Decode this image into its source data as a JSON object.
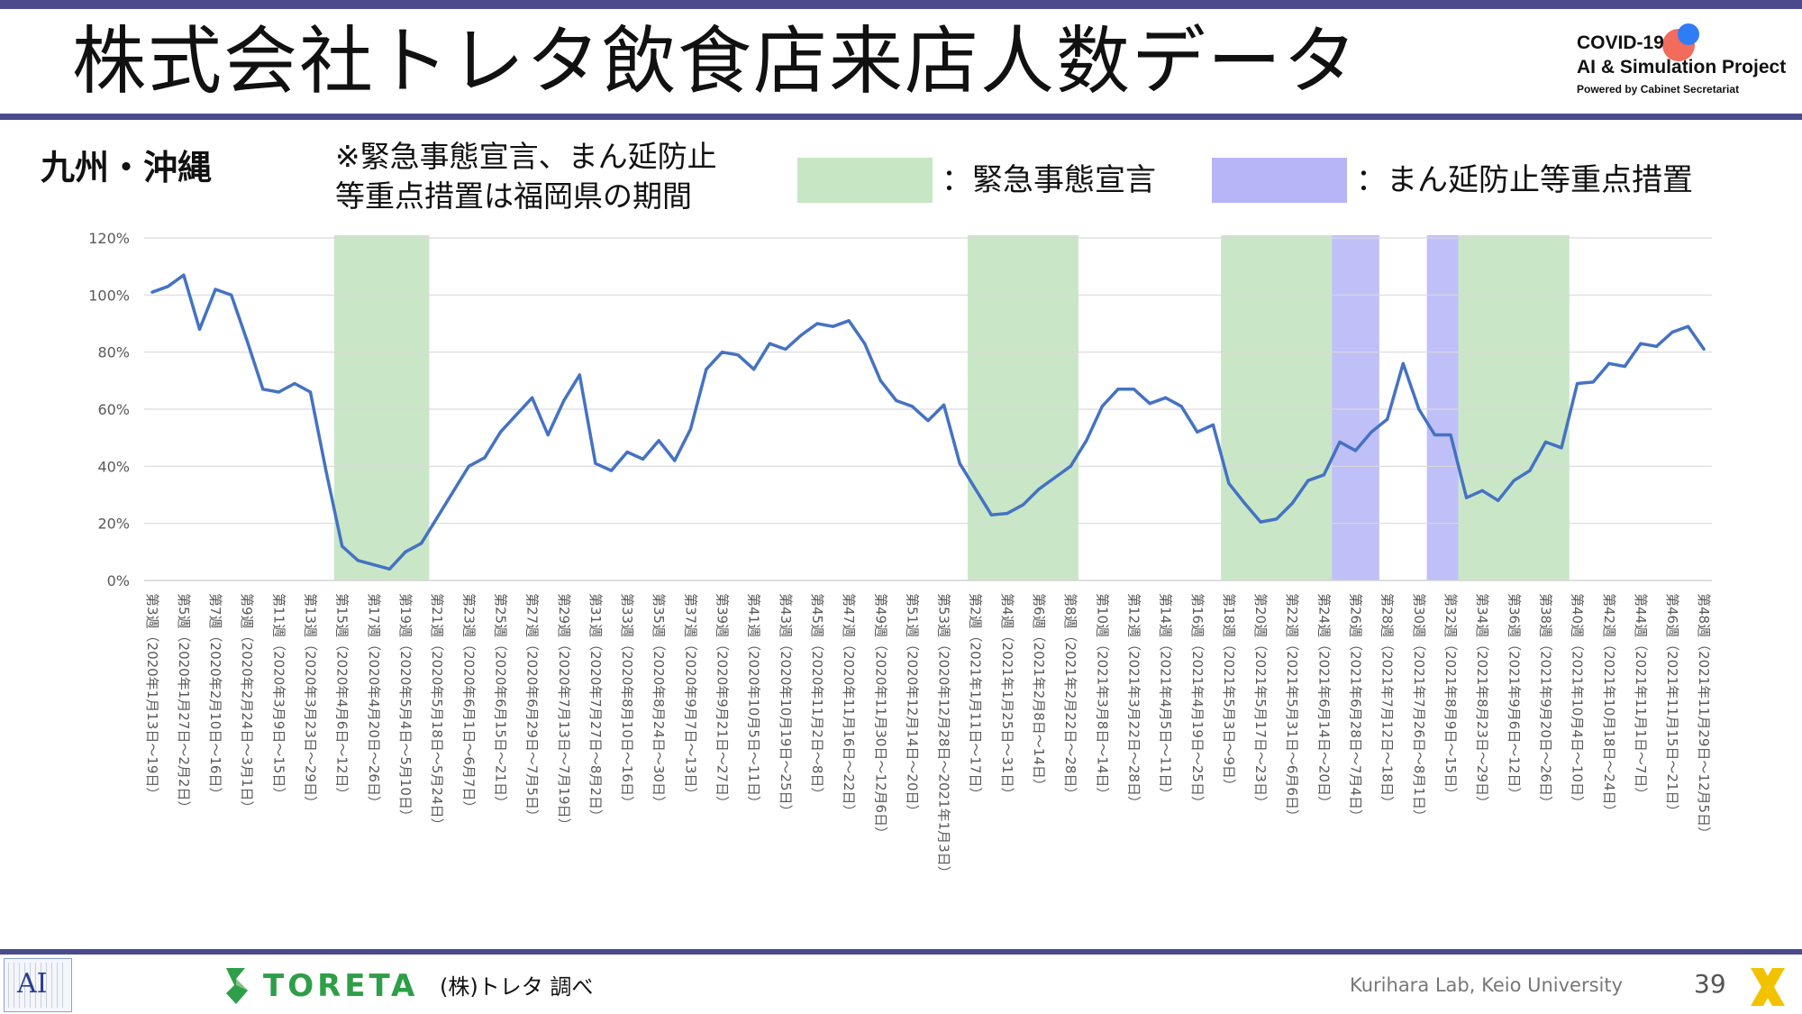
{
  "header": {
    "title": "株式会社トレタ飲食店来店人数データ",
    "logo_line1": "COVID-19",
    "logo_line2": "AI & Simulation Project",
    "logo_line3": "Powered by Cabinet Secretariat"
  },
  "subheader": {
    "region": "九州・沖縄",
    "note_line1": "※緊急事態宣言、まん延防止",
    "note_line2": "等重点措置は福岡県の期間",
    "legend_green": "：緊急事態宣言",
    "legend_blue": "：まん延防止等重点措置"
  },
  "colors": {
    "line": "#4472c4",
    "emergency": "#c6e6c4",
    "priority": "#b5b5f7",
    "accent": "#4a4a8c"
  },
  "chart_data": {
    "type": "line",
    "ylim": [
      0,
      120
    ],
    "yticks": [
      "0%",
      "20%",
      "40%",
      "60%",
      "80%",
      "100%",
      "120%"
    ],
    "grid": true,
    "categories": [
      "第3週（2020年1月13日～19日）",
      "",
      "第5週（2020年1月27日～2月2日）",
      "",
      "第7週（2020年2月10日～16日）",
      "",
      "第9週（2020年2月24日～3月1日）",
      "",
      "第11週（2020年3月9日～15日）",
      "",
      "第13週（2020年3月23日～29日）",
      "",
      "第15週（2020年4月6日～12日）",
      "",
      "第17週（2020年4月20日～26日）",
      "",
      "第19週（2020年5月4日～5月10日）",
      "",
      "第21週（2020年5月18日～5月24日）",
      "",
      "第23週（2020年6月1日～6月7日）",
      "",
      "第25週（2020年6月15日～21日）",
      "",
      "第27週（2020年6月29日～7月5日）",
      "",
      "第29週（2020年7月13日～7月19日）",
      "",
      "第31週（2020年7月27日～8月2日）",
      "",
      "第33週（2020年8月10日～16日）",
      "",
      "第35週（2020年8月24日～30日）",
      "",
      "第37週（2020年9月7日～13日）",
      "",
      "第39週（2020年9月21日～27日）",
      "",
      "第41週（2020年10月5日～11日）",
      "",
      "第43週（2020年10月19日～25日）",
      "",
      "第45週（2020年11月2日～8日）",
      "",
      "第47週（2020年11月16日～22日）",
      "",
      "第49週（2020年11月30日～12月6日）",
      "",
      "第51週（2020年12月14日～20日）",
      "",
      "第53週（2020年12月28日～2021年1月3日）",
      "",
      "第2週（2021年1月11日～17日）",
      "",
      "第4週（2021年1月25日～31日）",
      "",
      "第6週（2021年2月8日～14日）",
      "",
      "第8週（2021年2月22日～28日）",
      "",
      "第10週（2021年3月8日～14日）",
      "",
      "第12週（2021年3月22日～28日）",
      "",
      "第14週（2021年4月5日～11日）",
      "",
      "第16週（2021年4月19日～25日）",
      "",
      "第18週（2021年5月3日～9日）",
      "",
      "第20週（2021年5月17日～23日）",
      "",
      "第22週（2021年5月31日～6月6日）",
      "",
      "第24週（2021年6月14日～20日）",
      "",
      "第26週（2021年6月28日～7月4日）",
      "",
      "第28週（2021年7月12日～18日）",
      "",
      "第30週（2021年7月26日～8月1日）",
      "",
      "第32週（2021年8月9日～15日）",
      "",
      "第34週（2021年8月23日～29日）",
      "",
      "第36週（2021年9月6日～12日）",
      "",
      "第38週（2021年9月20日～26日）",
      "",
      "第40週（2021年10月4日～10日）",
      "",
      "第42週（2021年10月18日～24日）",
      "",
      "第44週（2021年11月1日～7日）",
      "",
      "第46週（2021年11月15日～21日）",
      "",
      "第48週（2021年11月29日～12月5日）"
    ],
    "series": [
      {
        "values": [
          101,
          103,
          107,
          88,
          102,
          100,
          84,
          67,
          66,
          69,
          66,
          38,
          12,
          7,
          5.5,
          4,
          10,
          13,
          22,
          31,
          40,
          43,
          52,
          58,
          64,
          51,
          63,
          72,
          41,
          38.5,
          45,
          42.5,
          49,
          42,
          53,
          74,
          80,
          79,
          74,
          83,
          81,
          86,
          90,
          89,
          91,
          83,
          70,
          63,
          61,
          56,
          61.5,
          41,
          32,
          23,
          23.5,
          26.5,
          32,
          36,
          40,
          49,
          61,
          67,
          67,
          62,
          64,
          61,
          52,
          54.5,
          34,
          27,
          20.5,
          21.5,
          27,
          35,
          37,
          48.5,
          45.5,
          52,
          56.5,
          76,
          60,
          51,
          51,
          29,
          31.5,
          28,
          35,
          38.5,
          48.5,
          46.5,
          69,
          69.5,
          76,
          75,
          83,
          82,
          87,
          89,
          81
        ]
      }
    ],
    "periods": [
      {
        "type": "emergency",
        "from": 12,
        "to": 18
      },
      {
        "type": "emergency",
        "from": 52,
        "to": 59
      },
      {
        "type": "emergency",
        "from": 68,
        "to": 75
      },
      {
        "type": "priority",
        "from": 75,
        "to": 78
      },
      {
        "type": "priority",
        "from": 81,
        "to": 83
      },
      {
        "type": "emergency",
        "from": 83,
        "to": 90
      }
    ]
  },
  "footer": {
    "ai_logo": "AI",
    "toreta": "TORETA",
    "survey": "(株)トレタ 調べ",
    "lab": "Kurihara Lab, Keio University",
    "page": "39"
  }
}
